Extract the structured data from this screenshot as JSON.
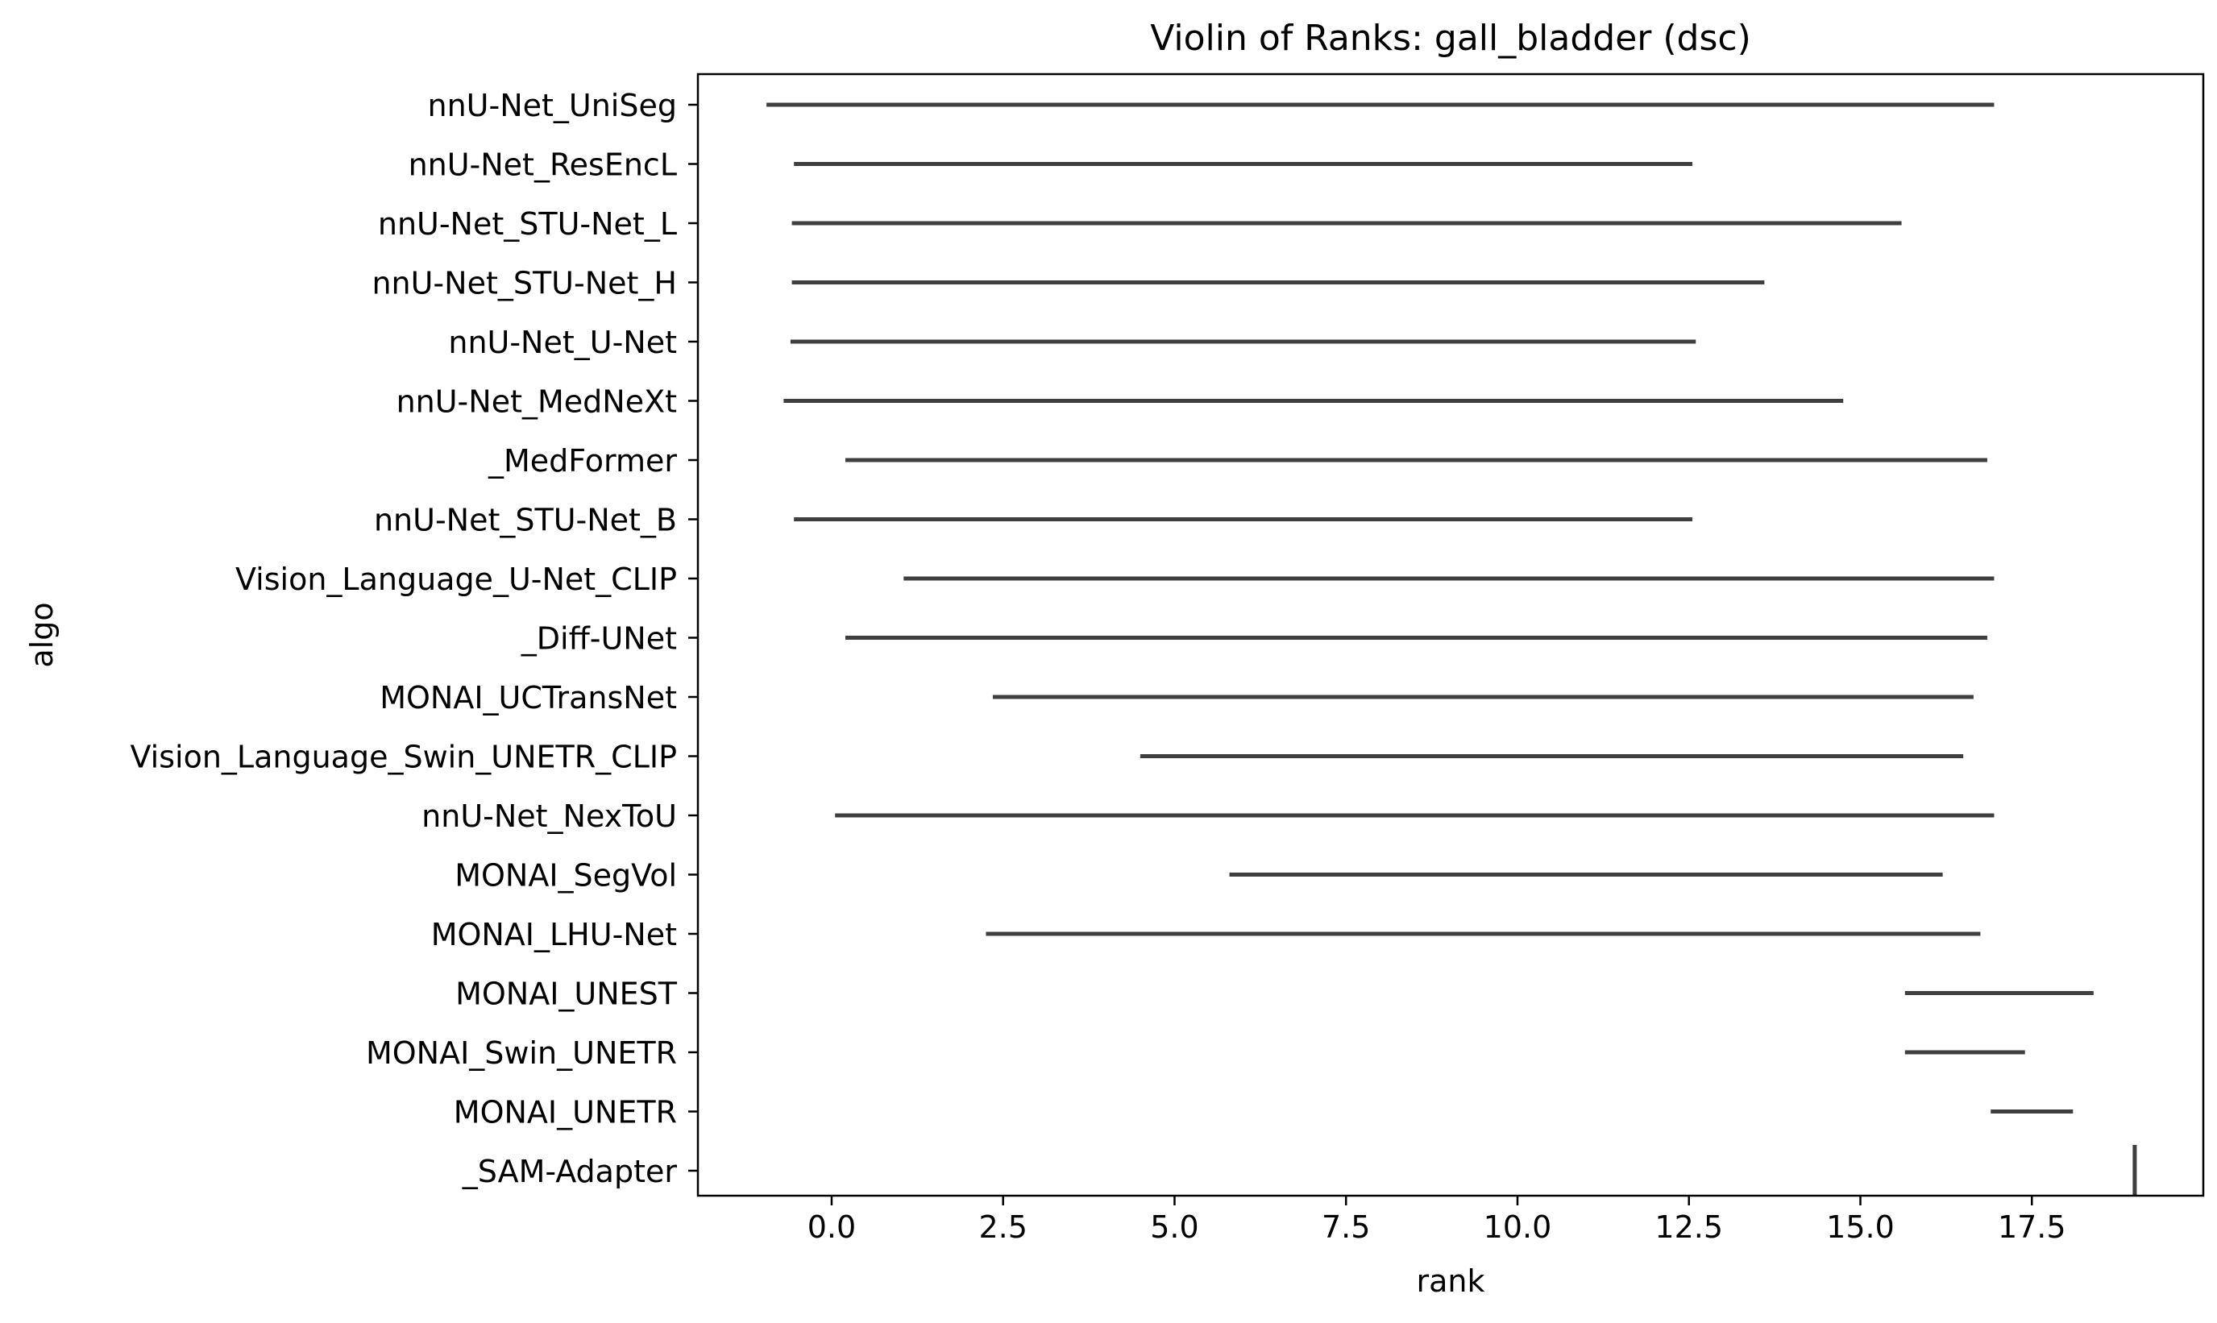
{
  "chart_data": {
    "type": "violin",
    "title": "Violin of Ranks: gall_bladder (dsc)",
    "xlabel": "rank",
    "ylabel": "algo",
    "xlim": [
      -1.95,
      20.0
    ],
    "xticks": [
      0.0,
      2.5,
      5.0,
      7.5,
      10.0,
      12.5,
      15.0,
      17.5
    ],
    "xtick_labels": [
      "0.0",
      "2.5",
      "5.0",
      "7.5",
      "10.0",
      "12.5",
      "15.0",
      "17.5"
    ],
    "grid": false,
    "legend": "none",
    "line_color": "#3f3f3f",
    "categories": [
      "nnU-Net_UniSeg",
      "nnU-Net_ResEncL",
      "nnU-Net_STU-Net_L",
      "nnU-Net_STU-Net_H",
      "nnU-Net_U-Net",
      "nnU-Net_MedNeXt",
      "_MedFormer",
      "nnU-Net_STU-Net_B",
      "Vision_Language_U-Net_CLIP",
      "_Diff-UNet",
      "MONAI_UCTransNet",
      "Vision_Language_Swin_UNETR_CLIP",
      "nnU-Net_NexToU",
      "MONAI_SegVol",
      "MONAI_LHU-Net",
      "MONAI_UNEST",
      "MONAI_Swin_UNETR",
      "MONAI_UNETR",
      "_SAM-Adapter"
    ],
    "ranges": [
      [
        -0.95,
        16.95
      ],
      [
        -0.55,
        12.55
      ],
      [
        -0.58,
        15.6
      ],
      [
        -0.58,
        13.6
      ],
      [
        -0.6,
        12.6
      ],
      [
        -0.7,
        14.75
      ],
      [
        0.2,
        16.85
      ],
      [
        -0.55,
        12.55
      ],
      [
        1.05,
        16.95
      ],
      [
        0.2,
        16.85
      ],
      [
        2.35,
        16.65
      ],
      [
        4.5,
        16.5
      ],
      [
        0.05,
        16.95
      ],
      [
        5.8,
        16.2
      ],
      [
        2.25,
        16.75
      ],
      [
        15.65,
        18.4
      ],
      [
        15.65,
        17.4
      ],
      [
        16.9,
        18.1
      ],
      [
        19.0,
        19.0
      ]
    ]
  }
}
